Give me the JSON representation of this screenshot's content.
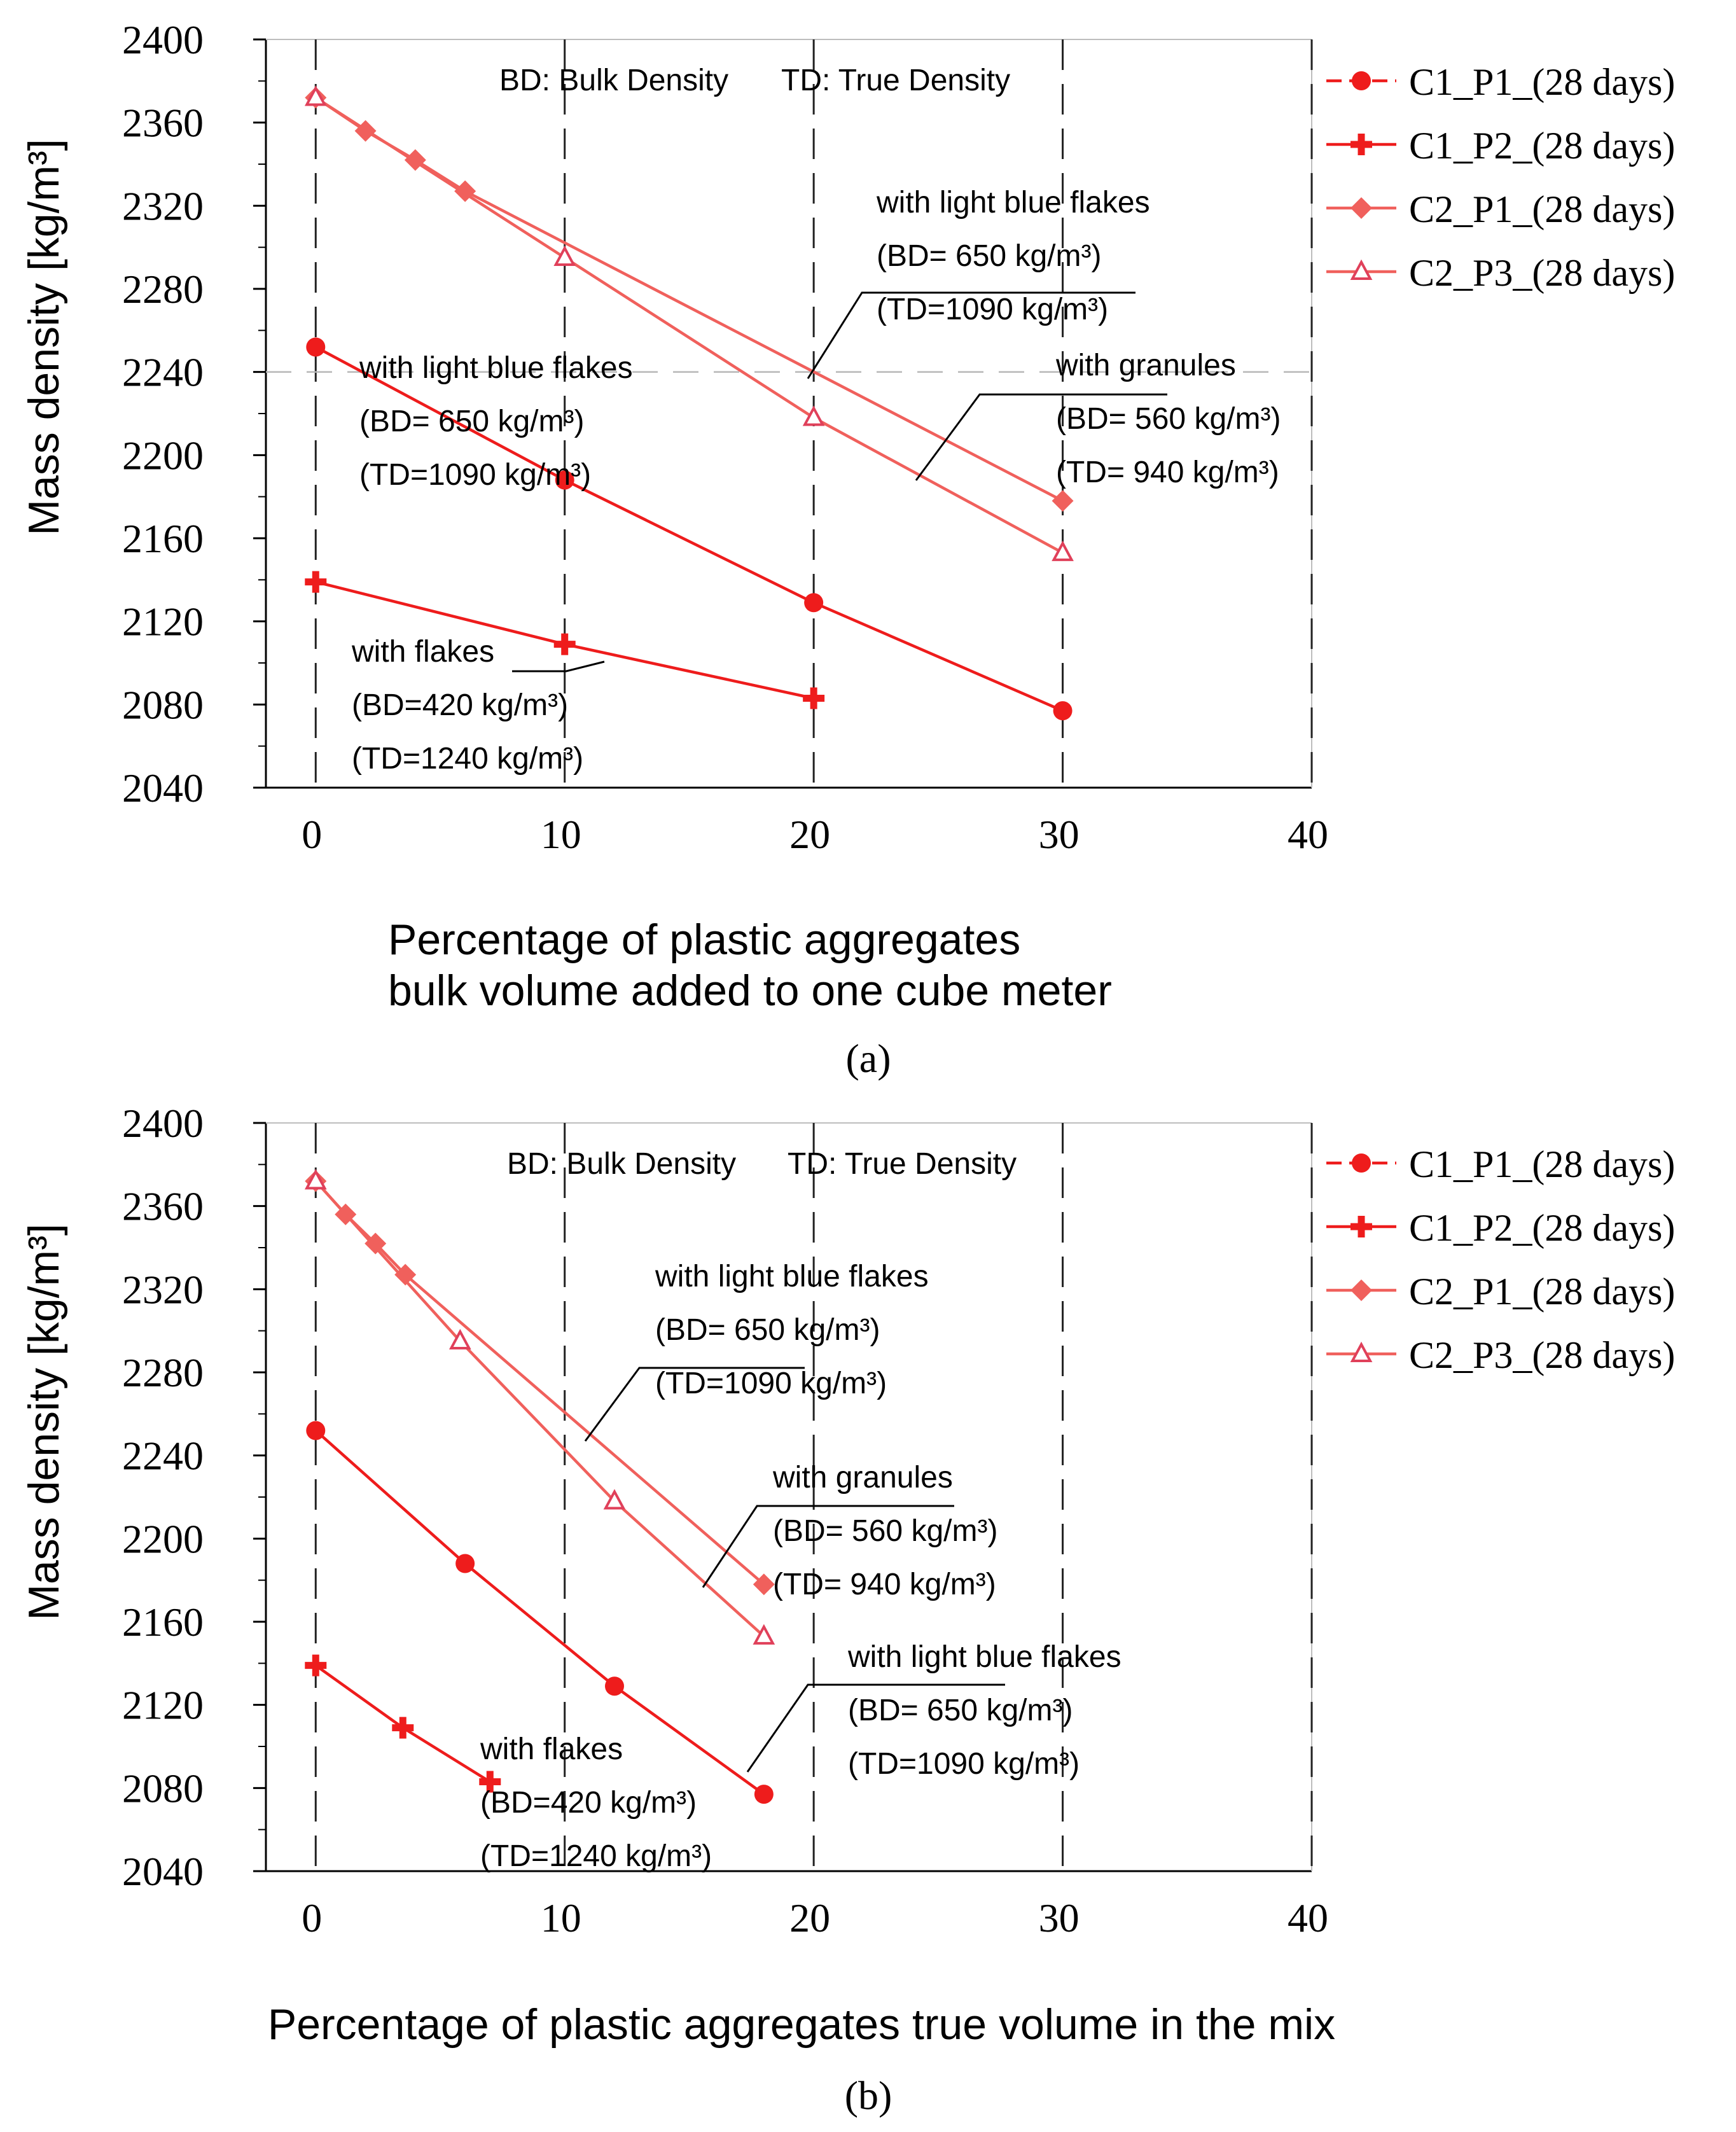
{
  "chart_data": [
    {
      "type": "line",
      "panel_label": "(a)",
      "xlabel": [
        "Percentage  of plastic aggregates",
        "bulk volume added to one cube meter"
      ],
      "ylabel": "Mass density [kg/m³]",
      "xlim": [
        -2,
        40
      ],
      "ylim": [
        2040,
        2400
      ],
      "xticks": [
        0,
        10,
        20,
        30,
        40
      ],
      "yticks": [
        2040,
        2080,
        2120,
        2160,
        2200,
        2240,
        2280,
        2320,
        2360,
        2400
      ],
      "vlines": [
        0,
        10,
        20,
        30,
        40
      ],
      "hline": 2240,
      "series": [
        {
          "name": "C1_P1_(28 days)",
          "marker": "circle",
          "color": "#ee1c1c",
          "x": [
            0,
            10,
            20,
            30
          ],
          "y": [
            2252,
            2188,
            2129,
            2077
          ]
        },
        {
          "name": "C1_P2_(28 days)",
          "marker": "plus",
          "color": "#ee1c1c",
          "x": [
            0,
            10,
            20
          ],
          "y": [
            2139,
            2109,
            2083
          ]
        },
        {
          "name": "C2_P1_(28 days)",
          "marker": "diamond",
          "color": "#f0605c",
          "x": [
            0,
            2,
            4,
            6,
            30
          ],
          "y": [
            2372,
            2356,
            2342,
            2327,
            2178
          ]
        },
        {
          "name": "C2_P3_(28 days)",
          "marker": "triangle",
          "color": "#f0605c",
          "x": [
            0,
            10,
            20,
            30
          ],
          "y": [
            2372,
            2295,
            2218,
            2153
          ]
        }
      ],
      "annotations": [
        {
          "lines": [
            "BD: Bulk Density",
            "TD: True Density"
          ]
        },
        {
          "lines": [
            "with light blue flakes",
            "(BD= 650 kg/m³)",
            "(TD=1090 kg/m³)"
          ]
        },
        {
          "lines": [
            "with granules",
            "(BD= 560 kg/m³)",
            "(TD= 940 kg/m³)"
          ]
        },
        {
          "lines": [
            "with light blue flakes",
            "(BD= 650 kg/m³)",
            "(TD=1090 kg/m³)"
          ]
        },
        {
          "lines": [
            "with flakes",
            "(BD=420 kg/m³)",
            "(TD=1240 kg/m³)"
          ]
        }
      ]
    },
    {
      "type": "line",
      "panel_label": "(b)",
      "xlabel": [
        "Percentage  of plastic aggregates true volume in the mix"
      ],
      "ylabel": "Mass density [kg/m³]",
      "xlim": [
        -2,
        40
      ],
      "ylim": [
        2040,
        2400
      ],
      "xticks": [
        0,
        10,
        20,
        30,
        40
      ],
      "yticks": [
        2040,
        2080,
        2120,
        2160,
        2200,
        2240,
        2280,
        2320,
        2360,
        2400
      ],
      "vlines": [
        0,
        10,
        20,
        30,
        40
      ],
      "hline": null,
      "series": [
        {
          "name": "C1_P1_(28 days)",
          "marker": "circle",
          "color": "#ee1c1c",
          "x": [
            0,
            6,
            12,
            18
          ],
          "y": [
            2252,
            2188,
            2129,
            2077
          ]
        },
        {
          "name": "C1_P2_(28 days)",
          "marker": "plus",
          "color": "#ee1c1c",
          "x": [
            0,
            3.5,
            7
          ],
          "y": [
            2139,
            2109,
            2083
          ]
        },
        {
          "name": "C2_P1_(28 days)",
          "marker": "diamond",
          "color": "#f0605c",
          "x": [
            0,
            1.2,
            2.4,
            3.6,
            18
          ],
          "y": [
            2372,
            2356,
            2342,
            2327,
            2178
          ]
        },
        {
          "name": "C2_P3_(28 days)",
          "marker": "triangle",
          "color": "#f0605c",
          "x": [
            0,
            5.8,
            12,
            18
          ],
          "y": [
            2372,
            2295,
            2218,
            2153
          ]
        }
      ],
      "annotations": [
        {
          "lines": [
            "BD: Bulk Density",
            "TD: True Density"
          ]
        },
        {
          "lines": [
            "with light blue flakes",
            "(BD= 650 kg/m³)",
            "(TD=1090 kg/m³)"
          ]
        },
        {
          "lines": [
            "with granules",
            "(BD= 560 kg/m³)",
            "(TD= 940 kg/m³)"
          ]
        },
        {
          "lines": [
            "with light blue flakes",
            "(BD= 650 kg/m³)",
            "(TD=1090 kg/m³)"
          ]
        },
        {
          "lines": [
            "with flakes",
            "(BD=420 kg/m³)",
            "(TD=1240 kg/m³)"
          ]
        }
      ]
    }
  ]
}
